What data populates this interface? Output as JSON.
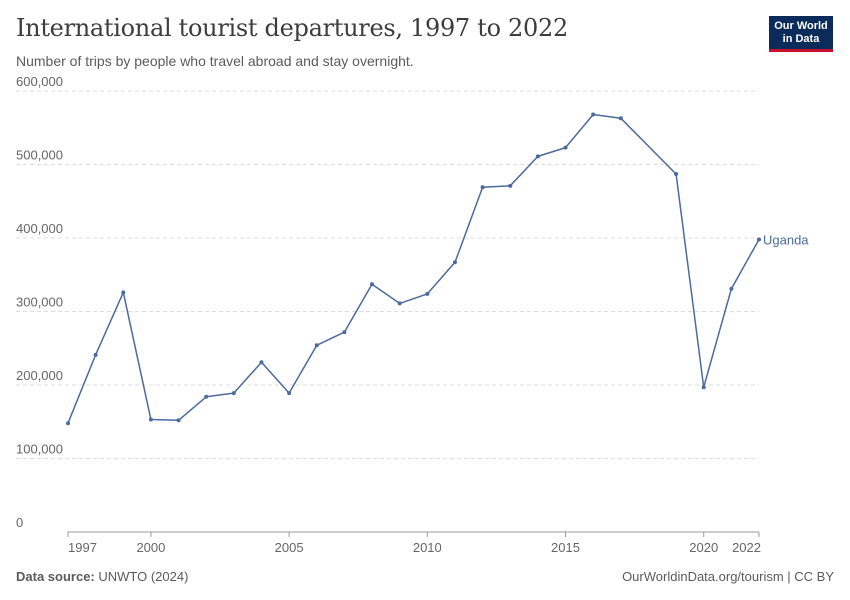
{
  "header": {
    "title": "International tourist departures, 1997 to 2022",
    "subtitle": "Number of trips by people who travel abroad and stay overnight."
  },
  "logo": {
    "line1": "Our World",
    "line2": "in Data"
  },
  "footer": {
    "source_label": "Data source:",
    "source_value": "UNWTO (2024)",
    "credit": "OurWorldinData.org/tourism | CC BY"
  },
  "colors": {
    "series": "#4c6a9c",
    "grid": "#dddddd",
    "axis": "#999999",
    "logo_bg": "#0b2c5a",
    "logo_accent": "#c8102e"
  },
  "chart_data": {
    "type": "line",
    "title": "International tourist departures, 1997 to 2022",
    "subtitle": "Number of trips by people who travel abroad and stay overnight.",
    "xlim": [
      1997,
      2022
    ],
    "ylim": [
      0,
      600000
    ],
    "x_ticks": [
      1997,
      2000,
      2005,
      2010,
      2015,
      2020,
      2022
    ],
    "x_tick_labels": [
      "1997",
      "2000",
      "2005",
      "2010",
      "2015",
      "2020",
      "2022"
    ],
    "y_ticks": [
      0,
      100000,
      200000,
      300000,
      400000,
      500000,
      600000
    ],
    "y_tick_labels": [
      "0",
      "100,000",
      "200,000",
      "300,000",
      "400,000",
      "500,000",
      "600,000"
    ],
    "grid": true,
    "series": [
      {
        "name": "Uganda",
        "color": "#4c6a9c",
        "x": [
          1997,
          1998,
          1999,
          2000,
          2001,
          2002,
          2003,
          2004,
          2005,
          2006,
          2007,
          2008,
          2009,
          2010,
          2011,
          2012,
          2013,
          2014,
          2015,
          2016,
          2017,
          2019,
          2020,
          2021,
          2022
        ],
        "y": [
          148000,
          241000,
          326000,
          153000,
          152000,
          184000,
          189000,
          231000,
          189000,
          254000,
          272000,
          337000,
          311000,
          324000,
          367000,
          469000,
          471000,
          511000,
          523000,
          568000,
          563000,
          487000,
          197000,
          331000,
          398000
        ]
      }
    ]
  }
}
